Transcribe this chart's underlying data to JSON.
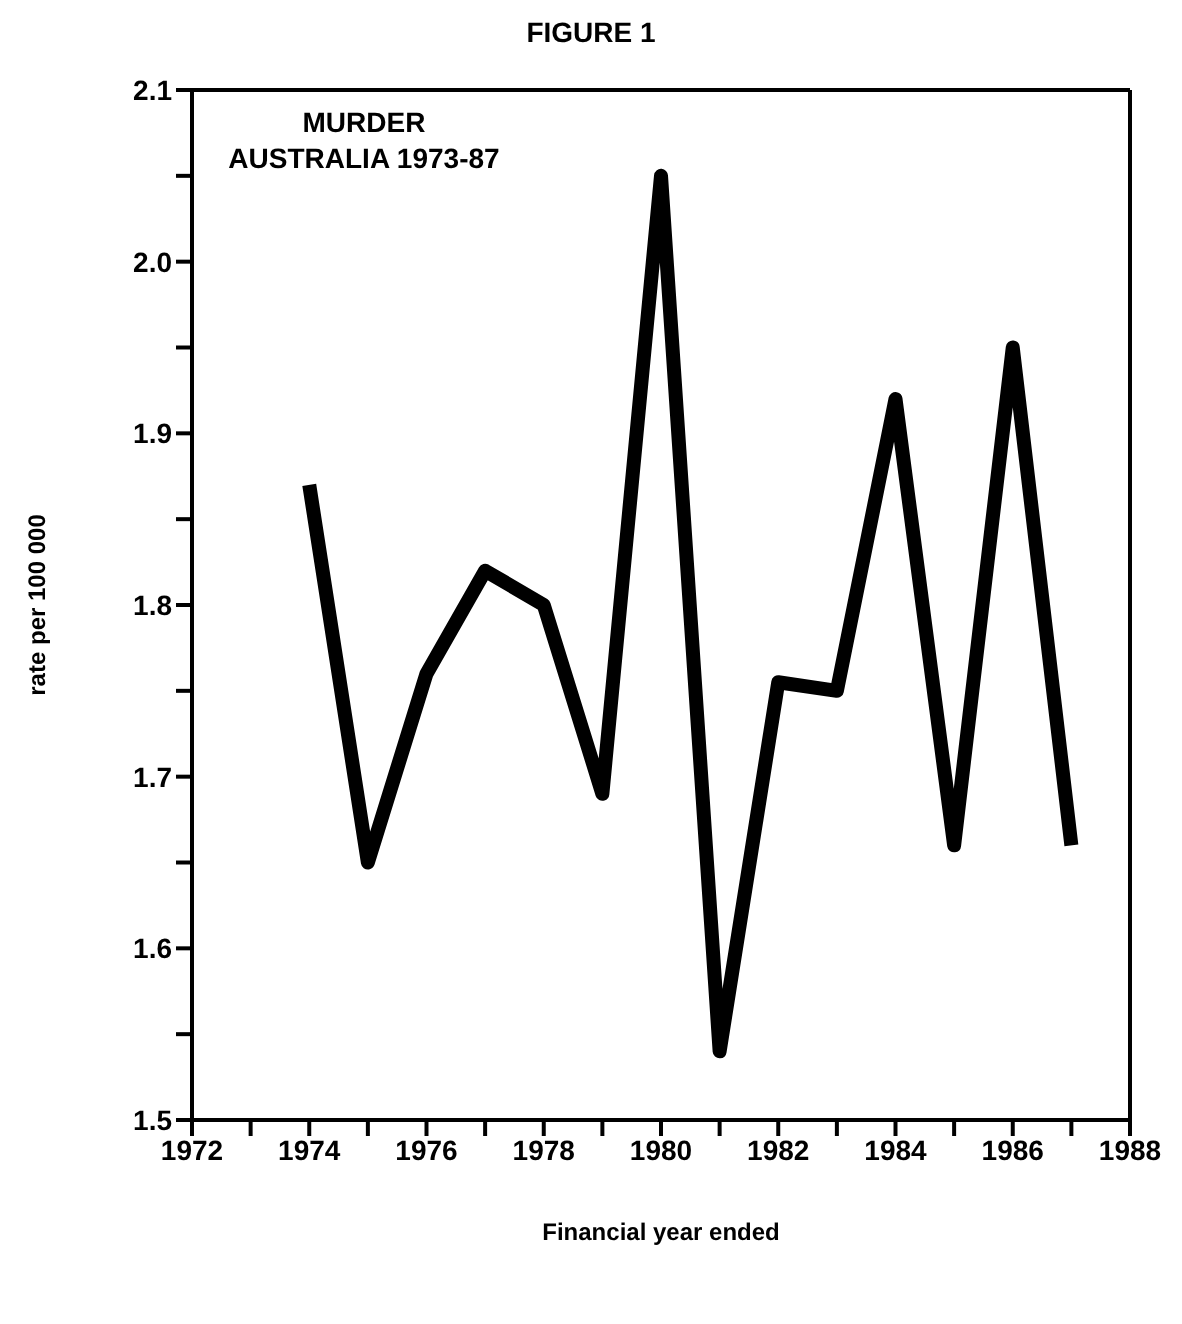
{
  "chart_data": {
    "type": "line",
    "title": "FIGURE 1",
    "annotations": [
      "MURDER",
      "AUSTRALIA 1973-87"
    ],
    "xlabel": "Financial year ended",
    "ylabel": "rate per 100 000",
    "x": [
      1974,
      1975,
      1976,
      1977,
      1978,
      1979,
      1980,
      1981,
      1982,
      1983,
      1984,
      1985,
      1986,
      1987
    ],
    "series": [
      {
        "color": "#000000",
        "values": [
          1.87,
          1.65,
          1.76,
          1.82,
          1.8,
          1.69,
          2.05,
          1.54,
          1.755,
          1.75,
          1.92,
          1.66,
          1.95,
          1.66
        ]
      }
    ],
    "xlim": [
      1972,
      1988
    ],
    "xticks": [
      1972,
      {
        "value": 1973,
        "label": null
      },
      1974,
      {
        "value": 1975,
        "label": null
      },
      1976,
      {
        "value": 1977,
        "label": null
      },
      1978,
      {
        "value": 1979,
        "label": null
      },
      1980,
      {
        "value": 1981,
        "label": null
      },
      1982,
      {
        "value": 1983,
        "label": null
      },
      1984,
      {
        "value": 1985,
        "label": null
      },
      1986,
      {
        "value": 1987,
        "label": null
      },
      1988
    ],
    "ylim": [
      1.5,
      2.1
    ],
    "yticks": [
      1.5,
      {
        "value": 1.55,
        "label": null
      },
      1.6,
      {
        "value": 1.65,
        "label": null
      },
      1.7,
      {
        "value": 1.75,
        "label": null
      },
      1.8,
      {
        "value": 1.85,
        "label": null
      },
      1.9,
      {
        "value": 1.95,
        "label": null
      },
      {
        "value": 2,
        "label": "2.0"
      },
      {
        "value": 2.05,
        "label": null
      },
      2.1
    ],
    "grid": false,
    "legend": false,
    "marker": "none",
    "line_style": "solid"
  }
}
